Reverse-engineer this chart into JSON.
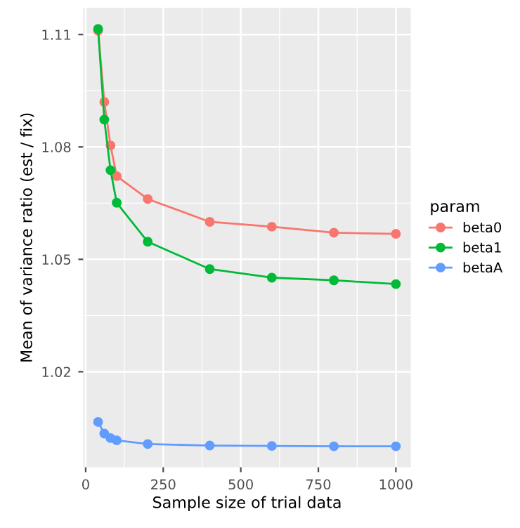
{
  "chart_data": {
    "type": "line",
    "xlabel": "Sample size of trial data",
    "ylabel": "Mean of variance ratio (est / fix)",
    "legend_title": "param",
    "legend": "right",
    "grid": true,
    "marker": "circle",
    "line_style": "solid",
    "x": [
      40,
      60,
      80,
      100,
      200,
      400,
      600,
      800,
      1000
    ],
    "xlim": [
      -8,
      1048
    ],
    "ylim": [
      0.9945,
      1.1171
    ],
    "xticks": [
      0,
      250,
      500,
      750,
      1000
    ],
    "yticks": [
      1.02,
      1.05,
      1.08,
      1.11
    ],
    "series": [
      {
        "name": "beta0",
        "color": "#f8766d",
        "values": [
          1.111,
          1.092,
          1.0804,
          1.0722,
          1.0661,
          1.06,
          1.0587,
          1.0571,
          1.0568
        ]
      },
      {
        "name": "beta1",
        "color": "#00ba38",
        "values": [
          1.1115,
          1.0873,
          1.0738,
          1.0651,
          1.0547,
          1.0474,
          1.0451,
          1.0444,
          1.0434
        ]
      },
      {
        "name": "betaA",
        "color": "#619cff",
        "values": [
          1.0066,
          1.0035,
          1.0023,
          1.0017,
          1.0007,
          1.0003,
          1.0002,
          1.0001,
          1.0001
        ]
      }
    ]
  }
}
